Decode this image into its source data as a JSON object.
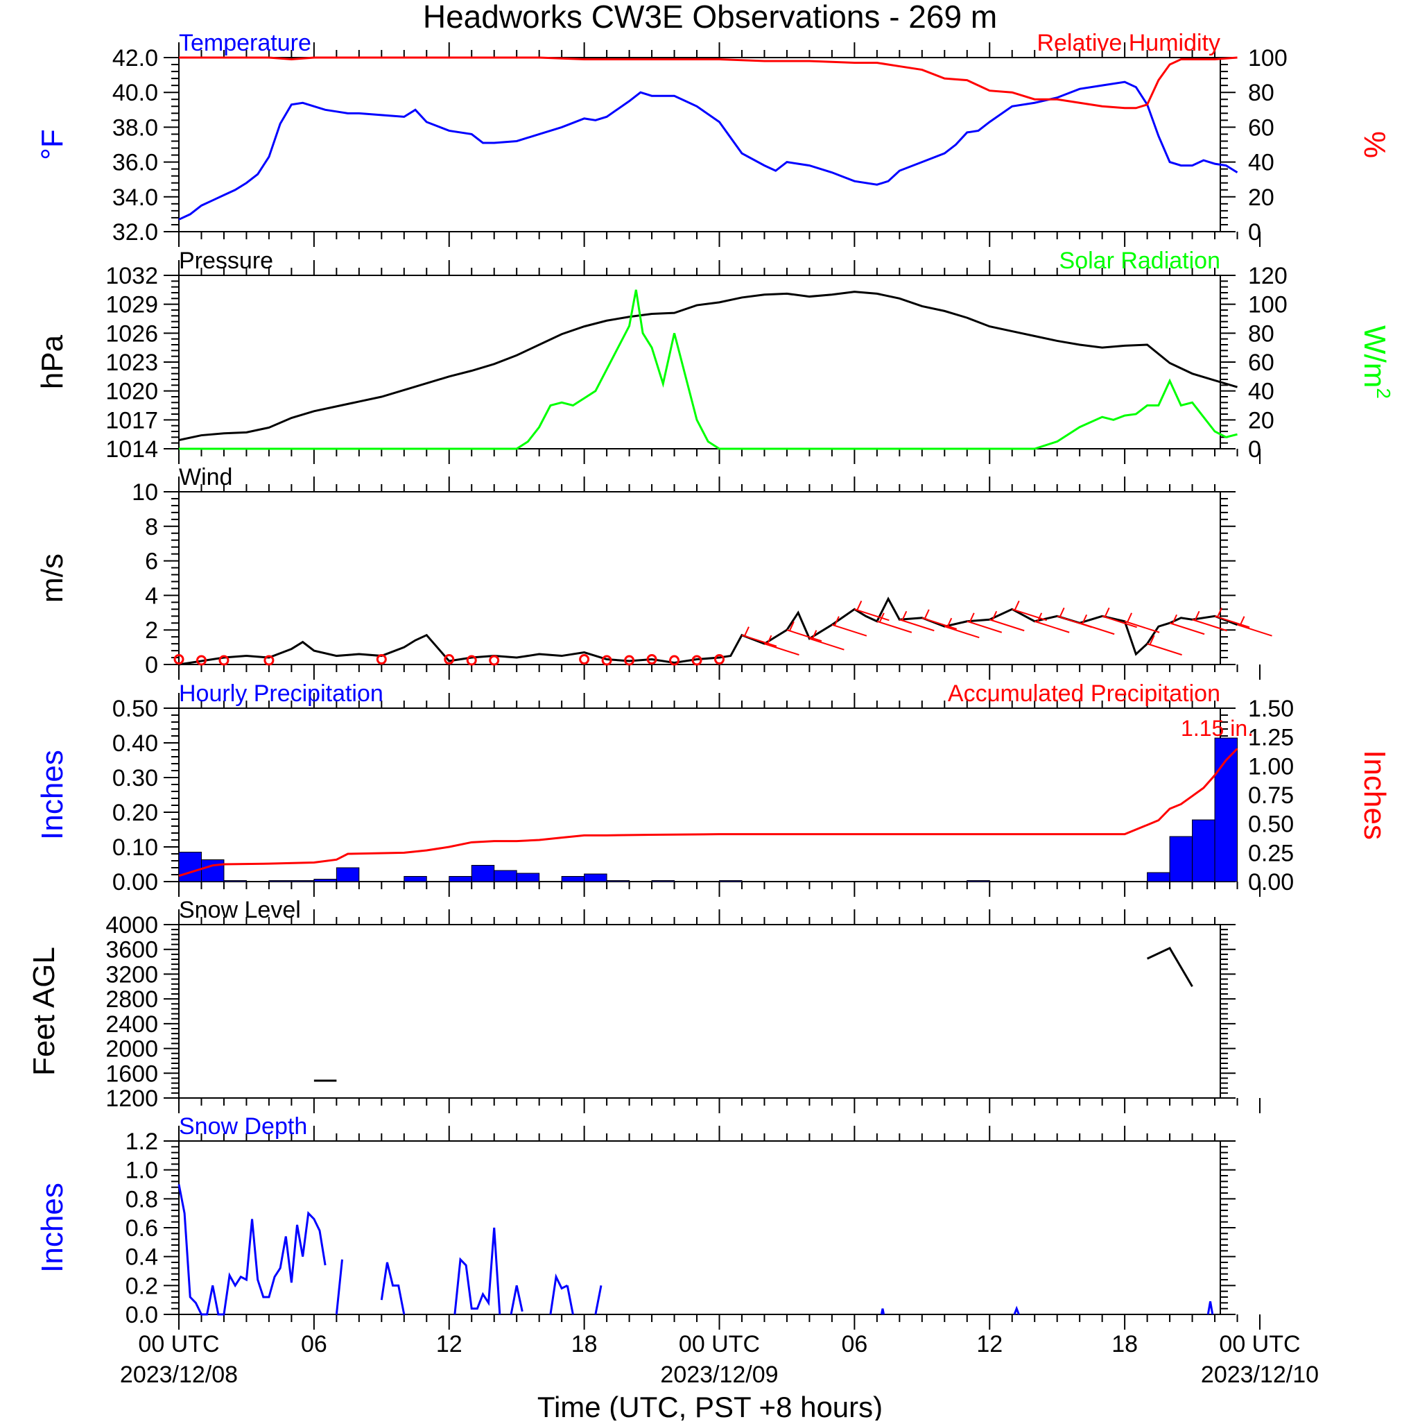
{
  "title": "Headworks CW3E Observations - 269 m",
  "xaxis": {
    "label": "Time (UTC, PST +8 hours)",
    "ticks": [
      {
        "h": 0,
        "label": "00 UTC",
        "date": "2023/12/08"
      },
      {
        "h": 6,
        "label": "06"
      },
      {
        "h": 12,
        "label": "12"
      },
      {
        "h": 18,
        "label": "18"
      },
      {
        "h": 24,
        "label": "00 UTC",
        "date": "2023/12/09"
      },
      {
        "h": 30,
        "label": "06"
      },
      {
        "h": 36,
        "label": "12"
      },
      {
        "h": 42,
        "label": "18"
      },
      {
        "h": 48,
        "label": "00 UTC",
        "date": "2023/12/10"
      }
    ]
  },
  "colors": {
    "blue": "#0000ff",
    "red": "#ff0000",
    "green": "#00ff00",
    "black": "#000000"
  },
  "chart_data": [
    {
      "type": "line",
      "left_title": "Temperature",
      "right_title": "Relative Humidity",
      "ylabel_left": "°F",
      "ylabel_right": "%",
      "ylim_left": [
        32,
        42
      ],
      "ylim_right": [
        0,
        100
      ],
      "yticks_left": [
        "32.0",
        "34.0",
        "36.0",
        "38.0",
        "40.0",
        "42.0"
      ],
      "yticks_right": [
        "0",
        "20",
        "40",
        "60",
        "80",
        "100"
      ],
      "series": [
        {
          "axis": "left",
          "color": "#0000ff",
          "x": [
            0,
            0.5,
            1,
            1.5,
            2,
            2.5,
            3,
            3.5,
            4,
            4.5,
            5,
            5.5,
            6,
            6.5,
            7,
            7.5,
            8,
            9,
            10,
            10.5,
            11,
            12,
            13,
            13.5,
            14,
            15,
            16,
            17,
            18,
            18.5,
            19,
            20,
            20.5,
            21,
            22,
            22.5,
            23,
            24,
            25,
            26,
            26.5,
            27,
            27.5,
            28,
            29,
            30,
            31,
            31.5,
            32,
            33,
            34,
            34.5,
            35,
            35.5,
            36,
            37,
            38,
            39,
            40,
            41,
            42,
            42.5,
            43,
            43.5,
            44,
            44.5,
            45,
            45.5,
            46,
            46.5,
            47
          ],
          "values": [
            32.7,
            33.0,
            33.5,
            33.8,
            34.1,
            34.4,
            34.8,
            35.3,
            36.3,
            38.2,
            39.3,
            39.4,
            39.2,
            39.0,
            38.9,
            38.8,
            38.8,
            38.7,
            38.6,
            39.0,
            38.3,
            37.8,
            37.6,
            37.1,
            37.1,
            37.2,
            37.6,
            38.0,
            38.5,
            38.4,
            38.6,
            39.5,
            40.0,
            39.8,
            39.8,
            39.5,
            39.2,
            38.3,
            36.5,
            35.8,
            35.5,
            36.0,
            35.9,
            35.8,
            35.4,
            34.9,
            34.7,
            34.9,
            35.5,
            36.0,
            36.5,
            37.0,
            37.7,
            37.8,
            38.3,
            39.2,
            39.4,
            39.7,
            40.2,
            40.4,
            40.6,
            40.3,
            39.3,
            37.5,
            36.0,
            35.8,
            35.8,
            36.1,
            35.9,
            35.8,
            35.4
          ]
        },
        {
          "axis": "right",
          "color": "#ff0000",
          "x": [
            0,
            2,
            4,
            5,
            6,
            8,
            10,
            12,
            14,
            16,
            18,
            20,
            21,
            22,
            23,
            24,
            26,
            28,
            30,
            31,
            32,
            33,
            34,
            35,
            36,
            37,
            38,
            39,
            40,
            41,
            42,
            42.5,
            43,
            43.5,
            44,
            44.5,
            45,
            46,
            47
          ],
          "values": [
            100,
            100,
            100,
            99,
            100,
            100,
            100,
            100,
            100,
            100,
            99,
            99,
            99,
            99,
            99,
            99,
            98,
            98,
            97,
            97,
            95,
            93,
            88,
            87,
            81,
            80,
            76,
            76,
            74,
            72,
            71,
            71,
            73,
            87,
            96,
            99,
            99,
            99,
            100
          ]
        }
      ]
    },
    {
      "type": "line",
      "left_title": "Pressure",
      "right_title": "Solar Radiation",
      "ylabel_left": "hPa",
      "ylabel_right": "W/m",
      "ylabel_right_sup": "2",
      "ylim_left": [
        1014,
        1032
      ],
      "ylim_right": [
        0,
        120
      ],
      "yticks_left": [
        "1014",
        "1017",
        "1020",
        "1023",
        "1026",
        "1029",
        "1032"
      ],
      "yticks_right": [
        "0",
        "20",
        "40",
        "60",
        "80",
        "100",
        "120"
      ],
      "series": [
        {
          "axis": "left",
          "color": "#000000",
          "x": [
            0,
            1,
            2,
            3,
            4,
            5,
            6,
            7,
            8,
            9,
            10,
            11,
            12,
            13,
            14,
            15,
            16,
            17,
            18,
            19,
            20,
            21,
            22,
            23,
            24,
            25,
            26,
            27,
            28,
            29,
            30,
            31,
            32,
            33,
            34,
            35,
            36,
            37,
            38,
            39,
            40,
            41,
            42,
            43,
            44,
            45,
            46,
            47
          ],
          "values": [
            1014.9,
            1015.4,
            1015.6,
            1015.7,
            1016.2,
            1017.2,
            1017.9,
            1018.4,
            1018.9,
            1019.4,
            1020.1,
            1020.8,
            1021.5,
            1022.1,
            1022.8,
            1023.7,
            1024.8,
            1025.9,
            1026.7,
            1027.3,
            1027.7,
            1028.0,
            1028.1,
            1028.9,
            1029.2,
            1029.7,
            1030.0,
            1030.1,
            1029.8,
            1030.0,
            1030.3,
            1030.1,
            1029.6,
            1028.8,
            1028.3,
            1027.6,
            1026.7,
            1026.2,
            1025.7,
            1025.2,
            1024.8,
            1024.5,
            1024.7,
            1024.8,
            1022.9,
            1021.8,
            1021.1,
            1020.4
          ]
        },
        {
          "axis": "right",
          "color": "#00ff00",
          "x": [
            0,
            15,
            15.5,
            16,
            16.5,
            17,
            17.5,
            18,
            18.5,
            19,
            19.5,
            20,
            20.3,
            20.6,
            21,
            21.5,
            22,
            22.5,
            23,
            23.5,
            24,
            30,
            35,
            38,
            39,
            40,
            41,
            41.5,
            42,
            42.5,
            43,
            43.5,
            44,
            44.5,
            45,
            45.5,
            46,
            46.5,
            47
          ],
          "values": [
            0,
            0,
            5,
            15,
            30,
            32,
            30,
            35,
            40,
            55,
            70,
            85,
            110,
            80,
            70,
            45,
            80,
            50,
            20,
            5,
            0,
            0,
            0,
            0,
            5,
            15,
            22,
            20,
            23,
            24,
            30,
            30,
            47,
            30,
            32,
            22,
            12,
            8,
            10
          ]
        }
      ]
    },
    {
      "type": "line",
      "left_title": "Wind",
      "ylabel_left": "m/s",
      "ylim_left": [
        0,
        10
      ],
      "yticks_left": [
        "0",
        "2",
        "4",
        "6",
        "8",
        "10"
      ],
      "series": [
        {
          "axis": "left",
          "color": "#000000",
          "x": [
            0,
            1,
            2,
            3,
            4,
            5,
            5.5,
            6,
            7,
            8,
            9,
            10,
            10.5,
            11,
            12,
            13,
            14,
            15,
            16,
            17,
            18,
            19,
            20,
            21,
            22,
            23,
            24,
            24.5,
            25,
            26,
            27,
            27.5,
            28,
            29,
            30,
            30.5,
            31,
            31.5,
            32,
            33,
            34,
            35,
            36,
            37,
            38,
            39,
            40,
            41,
            42,
            42.5,
            43,
            43.5,
            44,
            44.5,
            45,
            46,
            47
          ],
          "values": [
            0.0,
            0.2,
            0.4,
            0.5,
            0.4,
            0.9,
            1.3,
            0.8,
            0.5,
            0.6,
            0.5,
            1.0,
            1.4,
            1.7,
            0.2,
            0.4,
            0.5,
            0.4,
            0.6,
            0.5,
            0.7,
            0.3,
            0.2,
            0.3,
            0.1,
            0.3,
            0.4,
            0.5,
            1.7,
            1.2,
            2.0,
            3.0,
            1.5,
            2.3,
            3.2,
            2.8,
            2.5,
            3.8,
            2.6,
            2.7,
            2.2,
            2.5,
            2.6,
            3.2,
            2.5,
            2.8,
            2.4,
            2.8,
            2.5,
            0.6,
            1.2,
            2.2,
            2.4,
            2.7,
            2.6,
            2.8,
            2.3
          ]
        }
      ]
    },
    {
      "type": "bar",
      "left_title": "Hourly Precipitation",
      "right_title": "Accumulated Precipitation",
      "annotation": "1.15 in.",
      "ylabel_left": "Inches",
      "ylabel_right": "Inches",
      "ylim_left": [
        0,
        0.5
      ],
      "ylim_right": [
        0,
        1.5
      ],
      "yticks_left": [
        "0.00",
        "0.10",
        "0.20",
        "0.30",
        "0.40",
        "0.50"
      ],
      "yticks_right": [
        "0.00",
        "0.25",
        "0.50",
        "0.75",
        "1.00",
        "1.25",
        "1.50"
      ],
      "bars": {
        "color": "#0000ff",
        "x": [
          0,
          1,
          2,
          4,
          5,
          6,
          7,
          10,
          12,
          13,
          14,
          15,
          17,
          18,
          19,
          21,
          24,
          35,
          43,
          44,
          45,
          46
        ],
        "values": [
          0.085,
          0.063,
          0.003,
          0.003,
          0.003,
          0.007,
          0.04,
          0.015,
          0.015,
          0.047,
          0.032,
          0.024,
          0.015,
          0.022,
          0.003,
          0.003,
          0.003,
          0.003,
          0.026,
          0.13,
          0.178,
          0.414
        ]
      },
      "series": [
        {
          "axis": "right",
          "color": "#ff0000",
          "x": [
            0,
            1,
            1.5,
            2,
            4,
            6,
            7,
            7.5,
            10,
            11,
            12,
            13,
            14,
            15,
            16,
            17,
            18,
            18.5,
            19,
            21,
            24,
            30,
            35,
            36,
            42,
            43,
            43.5,
            44,
            44.5,
            45,
            45.5,
            46,
            46.5,
            47
          ],
          "values": [
            0.05,
            0.11,
            0.14,
            0.15,
            0.155,
            0.165,
            0.19,
            0.24,
            0.25,
            0.27,
            0.3,
            0.34,
            0.35,
            0.35,
            0.36,
            0.38,
            0.4,
            0.4,
            0.4,
            0.405,
            0.41,
            0.41,
            0.41,
            0.41,
            0.41,
            0.49,
            0.53,
            0.63,
            0.67,
            0.74,
            0.81,
            0.92,
            1.05,
            1.15
          ]
        }
      ]
    },
    {
      "type": "line",
      "left_title": "Snow Level",
      "ylabel_left": "Feet AGL",
      "ylim_left": [
        1200,
        4000
      ],
      "yticks_left": [
        "1200",
        "1600",
        "2000",
        "2400",
        "2800",
        "3200",
        "3600",
        "4000"
      ],
      "series": [
        {
          "axis": "left",
          "color": "#000000",
          "x": [
            6,
            7
          ],
          "values": [
            1480,
            1480
          ]
        },
        {
          "axis": "left",
          "color": "#000000",
          "x": [
            43,
            44,
            45
          ],
          "values": [
            3450,
            3620,
            3000
          ]
        }
      ]
    },
    {
      "type": "line",
      "left_title": "Snow Depth",
      "ylabel_left": "Inches",
      "ylim_left": [
        0,
        1.2
      ],
      "yticks_left": [
        "0.0",
        "0.2",
        "0.4",
        "0.6",
        "0.8",
        "1.0",
        "1.2"
      ],
      "series": [
        {
          "axis": "left",
          "color": "#0000ff",
          "x": [
            0,
            0.25,
            0.5,
            0.75,
            1,
            1.25,
            1.5,
            1.75,
            2,
            2.25,
            2.5,
            2.75,
            3,
            3.25,
            3.5,
            3.75,
            4,
            4.25,
            4.5,
            4.75,
            5,
            5.25,
            5.5,
            5.75,
            6,
            6.25,
            6.5
          ],
          "values": [
            0.9,
            0.7,
            0.12,
            0.08,
            0.0,
            0.0,
            0.2,
            0.0,
            0.0,
            0.27,
            0.2,
            0.26,
            0.24,
            0.66,
            0.24,
            0.12,
            0.12,
            0.26,
            0.32,
            0.54,
            0.22,
            0.62,
            0.4,
            0.7,
            0.66,
            0.58,
            0.34
          ]
        },
        {
          "axis": "left",
          "color": "#0000ff",
          "x": [
            7,
            7.25
          ],
          "values": [
            0.0,
            0.38
          ]
        },
        {
          "axis": "left",
          "color": "#0000ff",
          "x": [
            9,
            9.25,
            9.5,
            9.75,
            10
          ],
          "values": [
            0.1,
            0.36,
            0.2,
            0.2,
            0.0
          ]
        },
        {
          "axis": "left",
          "color": "#0000ff",
          "x": [
            12.25,
            12.5,
            12.75,
            13,
            13.25,
            13.5,
            13.75,
            14,
            14.25
          ],
          "values": [
            0.0,
            0.38,
            0.34,
            0.04,
            0.04,
            0.14,
            0.08,
            0.6,
            0.0
          ]
        },
        {
          "axis": "left",
          "color": "#0000ff",
          "x": [
            14.75,
            15,
            15.25
          ],
          "values": [
            0.0,
            0.2,
            0.02
          ]
        },
        {
          "axis": "left",
          "color": "#0000ff",
          "x": [
            16.5,
            16.75,
            17,
            17.25
          ],
          "values": [
            0.0,
            0.26,
            0.18,
            0.2
          ]
        },
        {
          "axis": "left",
          "color": "#0000ff",
          "x": [
            17.25,
            17.5
          ],
          "values": [
            0.2,
            0.0
          ]
        },
        {
          "axis": "left",
          "color": "#0000ff",
          "x": [
            18.5,
            18.75
          ],
          "values": [
            0.0,
            0.2
          ]
        },
        {
          "axis": "left",
          "color": "#0000ff",
          "x": [
            31.2,
            31.25,
            31.3
          ],
          "values": [
            0.0,
            0.04,
            0.0
          ]
        },
        {
          "axis": "left",
          "color": "#0000ff",
          "x": [
            37.1,
            37.2,
            37.3
          ],
          "values": [
            0.0,
            0.04,
            0.0
          ]
        },
        {
          "axis": "left",
          "color": "#0000ff",
          "x": [
            45.7,
            45.8,
            45.9
          ],
          "values": [
            0.0,
            0.09,
            0.0
          ]
        }
      ]
    }
  ]
}
